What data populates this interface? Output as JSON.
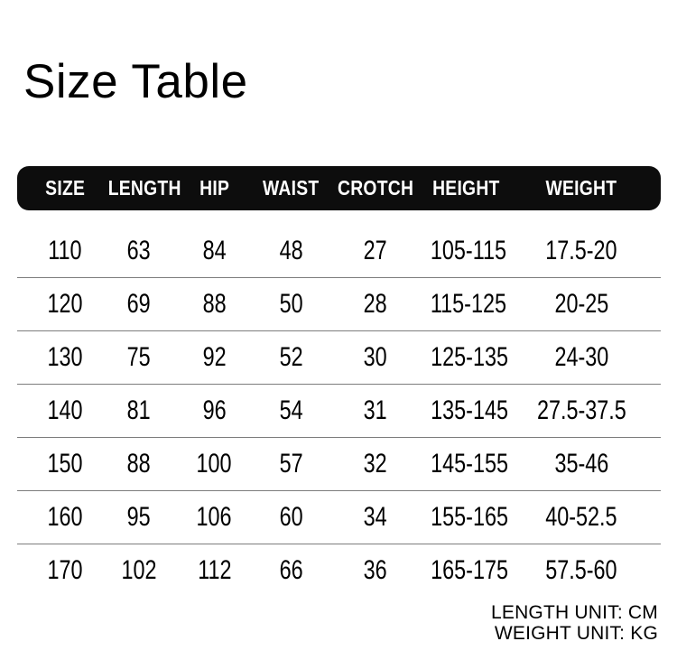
{
  "page": {
    "title": "Size Table",
    "background_color": "#ffffff",
    "text_color": "#000000"
  },
  "table": {
    "header_bg": "#0d0d0d",
    "header_text_color": "#ffffff",
    "separator_color": "#7d7d7d",
    "headers": [
      "SIZE",
      "LENGTH",
      "HIP",
      "WAIST",
      "CROTCH",
      "HEIGHT",
      "WEIGHT"
    ],
    "rows": [
      [
        "110",
        "63",
        "84",
        "48",
        "27",
        "105-115",
        "17.5-20"
      ],
      [
        "120",
        "69",
        "88",
        "50",
        "28",
        "115-125",
        "20-25"
      ],
      [
        "130",
        "75",
        "92",
        "52",
        "30",
        "125-135",
        "24-30"
      ],
      [
        "140",
        "81",
        "96",
        "54",
        "31",
        "135-145",
        "27.5-37.5"
      ],
      [
        "150",
        "88",
        "100",
        "57",
        "32",
        "145-155",
        "35-46"
      ],
      [
        "160",
        "95",
        "106",
        "60",
        "34",
        "155-165",
        "40-52.5"
      ],
      [
        "170",
        "102",
        "112",
        "66",
        "36",
        "165-175",
        "57.5-60"
      ]
    ]
  },
  "footer": {
    "length_unit": "LENGTH UNIT: CM",
    "weight_unit": "WEIGHT UNIT: KG"
  }
}
